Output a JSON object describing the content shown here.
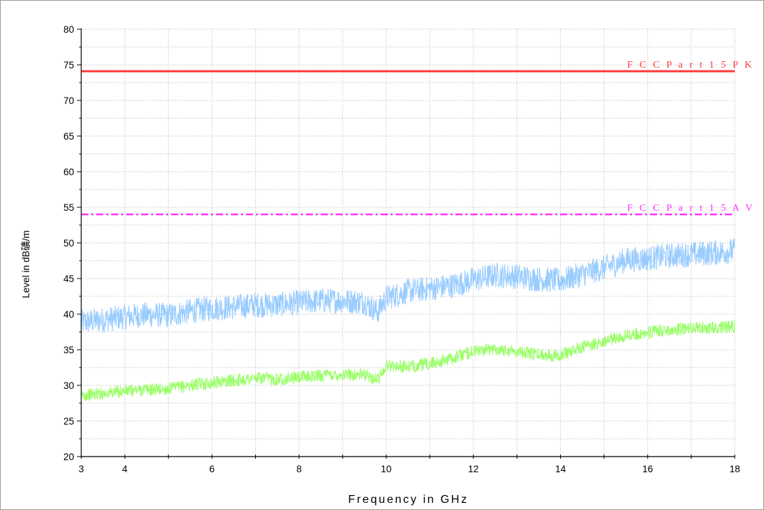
{
  "chart_data": {
    "type": "line",
    "title": "",
    "xlabel": "Frequency in GHz",
    "ylabel": "Level in dB礦/m",
    "xlim": [
      3,
      18
    ],
    "ylim": [
      20,
      80
    ],
    "x_ticks": [
      3,
      4,
      6,
      8,
      10,
      12,
      14,
      16,
      18
    ],
    "x_tick_labels": [
      "3",
      "4",
      "6",
      "8",
      "10",
      "12",
      "14",
      "16",
      "18"
    ],
    "y_ticks": [
      20,
      25,
      30,
      35,
      40,
      45,
      50,
      55,
      60,
      65,
      70,
      75,
      80
    ],
    "y_tick_labels": [
      "20",
      "25",
      "30",
      "35",
      "40",
      "45",
      "50",
      "55",
      "60",
      "65",
      "70",
      "75",
      "80"
    ],
    "grid": true,
    "limit_lines": [
      {
        "name": "FCC Part15 PK",
        "label": "F C C  P a r t 1 5  P K",
        "y": 74.1,
        "color": "#ff3b3b",
        "style": "solid"
      },
      {
        "name": "FCC Part15 AV",
        "label": "F C C  P a r t 1 5  A V",
        "y": 54.0,
        "color": "#ff33ff",
        "style": "dashdot"
      }
    ],
    "series": [
      {
        "color": "#99ccff",
        "x": [
          3,
          3.5,
          4,
          4.5,
          5,
          5.5,
          6,
          6.5,
          7,
          7.5,
          8,
          8.5,
          9,
          9.5,
          9.8,
          10,
          10.5,
          11,
          11.5,
          12,
          12.5,
          13,
          13.5,
          14,
          14.5,
          15,
          15.5,
          16,
          16.5,
          17,
          17.5,
          18
        ],
        "values": [
          38.8,
          39.2,
          39.6,
          39.9,
          39.8,
          40.4,
          40.8,
          41.0,
          41.3,
          41.3,
          41.6,
          41.9,
          41.9,
          41.7,
          40.3,
          42.3,
          43.2,
          43.6,
          44.0,
          44.8,
          45.5,
          45.3,
          44.9,
          44.7,
          45.6,
          46.5,
          47.6,
          47.8,
          48.2,
          48.4,
          48.6,
          48.9
        ],
        "noise": 1.8
      },
      {
        "color": "#99ff66",
        "x": [
          3,
          3.5,
          4,
          4.5,
          5,
          5.5,
          6,
          6.5,
          7,
          7.5,
          8,
          8.5,
          9,
          9.5,
          9.8,
          10,
          10.5,
          11,
          11.5,
          12,
          12.5,
          13,
          13.5,
          14,
          14.5,
          15,
          15.5,
          16,
          16.5,
          17,
          17.5,
          18
        ],
        "values": [
          28.6,
          28.9,
          29.2,
          29.4,
          29.5,
          30.0,
          30.4,
          30.7,
          31.0,
          30.9,
          31.1,
          31.4,
          31.5,
          31.5,
          30.8,
          32.8,
          32.6,
          33.0,
          33.8,
          34.8,
          35.1,
          34.8,
          34.3,
          34.3,
          35.4,
          36.2,
          37.0,
          37.4,
          37.8,
          38.0,
          38.1,
          38.3
        ],
        "noise": 0.9
      }
    ]
  }
}
